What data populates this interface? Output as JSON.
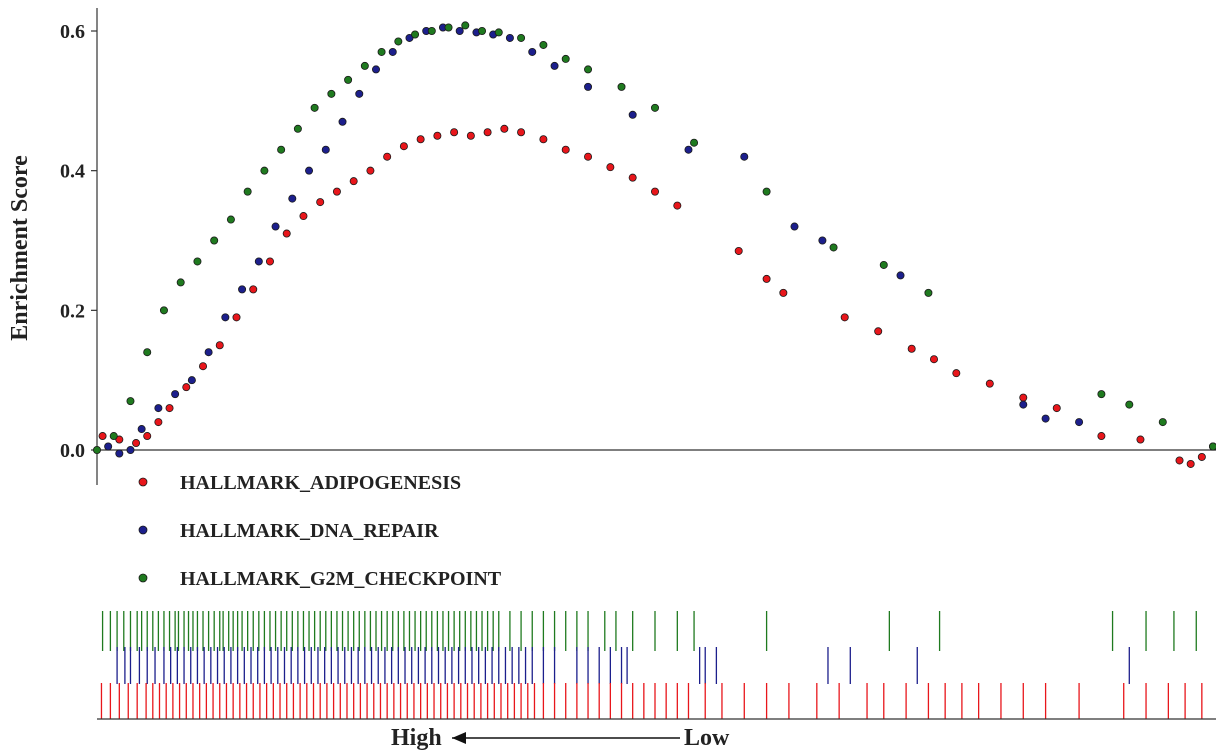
{
  "chart_data": {
    "type": "scatter",
    "title": "",
    "ylabel": "Enrichment Score",
    "xlabel_left": "High",
    "xlabel_right": "Low",
    "ylim": [
      -0.04,
      0.64
    ],
    "xlim": [
      0,
      1
    ],
    "yticks": [
      "0.0",
      "0.2",
      "0.4",
      "0.6"
    ],
    "ytick_values": [
      0,
      0.2,
      0.4,
      0.6
    ],
    "legend": {
      "placement": "below-plot"
    },
    "series": [
      {
        "name": "HALLMARK_ADIPOGENESIS",
        "color": "#e8161b",
        "points": [
          [
            0.005,
            0.02
          ],
          [
            0.02,
            0.015
          ],
          [
            0.035,
            0.01
          ],
          [
            0.045,
            0.02
          ],
          [
            0.055,
            0.04
          ],
          [
            0.065,
            0.06
          ],
          [
            0.08,
            0.09
          ],
          [
            0.095,
            0.12
          ],
          [
            0.11,
            0.15
          ],
          [
            0.125,
            0.19
          ],
          [
            0.14,
            0.23
          ],
          [
            0.155,
            0.27
          ],
          [
            0.17,
            0.31
          ],
          [
            0.185,
            0.335
          ],
          [
            0.2,
            0.355
          ],
          [
            0.215,
            0.37
          ],
          [
            0.23,
            0.385
          ],
          [
            0.245,
            0.4
          ],
          [
            0.26,
            0.42
          ],
          [
            0.275,
            0.435
          ],
          [
            0.29,
            0.445
          ],
          [
            0.305,
            0.45
          ],
          [
            0.32,
            0.455
          ],
          [
            0.335,
            0.45
          ],
          [
            0.35,
            0.455
          ],
          [
            0.365,
            0.46
          ],
          [
            0.38,
            0.455
          ],
          [
            0.4,
            0.445
          ],
          [
            0.42,
            0.43
          ],
          [
            0.44,
            0.42
          ],
          [
            0.46,
            0.405
          ],
          [
            0.48,
            0.39
          ],
          [
            0.5,
            0.37
          ],
          [
            0.52,
            0.35
          ],
          [
            0.575,
            0.285
          ],
          [
            0.6,
            0.245
          ],
          [
            0.615,
            0.225
          ],
          [
            0.67,
            0.19
          ],
          [
            0.7,
            0.17
          ],
          [
            0.73,
            0.145
          ],
          [
            0.75,
            0.13
          ],
          [
            0.77,
            0.11
          ],
          [
            0.8,
            0.095
          ],
          [
            0.83,
            0.075
          ],
          [
            0.86,
            0.06
          ],
          [
            0.9,
            0.02
          ],
          [
            0.935,
            0.015
          ],
          [
            0.97,
            -0.015
          ],
          [
            0.98,
            -0.02
          ],
          [
            0.99,
            -0.01
          ],
          [
            1.0,
            0.005
          ]
        ]
      },
      {
        "name": "HALLMARK_DNA_REPAIR",
        "color": "#1c1f8c",
        "points": [
          [
            0.01,
            0.005
          ],
          [
            0.02,
            -0.005
          ],
          [
            0.03,
            0.0
          ],
          [
            0.04,
            0.03
          ],
          [
            0.055,
            0.06
          ],
          [
            0.07,
            0.08
          ],
          [
            0.085,
            0.1
          ],
          [
            0.1,
            0.14
          ],
          [
            0.115,
            0.19
          ],
          [
            0.13,
            0.23
          ],
          [
            0.145,
            0.27
          ],
          [
            0.16,
            0.32
          ],
          [
            0.175,
            0.36
          ],
          [
            0.19,
            0.4
          ],
          [
            0.205,
            0.43
          ],
          [
            0.22,
            0.47
          ],
          [
            0.235,
            0.51
          ],
          [
            0.25,
            0.545
          ],
          [
            0.265,
            0.57
          ],
          [
            0.28,
            0.59
          ],
          [
            0.295,
            0.6
          ],
          [
            0.31,
            0.605
          ],
          [
            0.325,
            0.6
          ],
          [
            0.34,
            0.598
          ],
          [
            0.355,
            0.595
          ],
          [
            0.37,
            0.59
          ],
          [
            0.39,
            0.57
          ],
          [
            0.41,
            0.55
          ],
          [
            0.44,
            0.52
          ],
          [
            0.48,
            0.48
          ],
          [
            0.53,
            0.43
          ],
          [
            0.58,
            0.42
          ],
          [
            0.625,
            0.32
          ],
          [
            0.65,
            0.3
          ],
          [
            0.72,
            0.25
          ],
          [
            0.83,
            0.065
          ],
          [
            0.85,
            0.045
          ],
          [
            0.88,
            0.04
          ]
        ]
      },
      {
        "name": "HALLMARK_G2M_CHECKPOINT",
        "color": "#1f7a1f",
        "points": [
          [
            0.0,
            0.0
          ],
          [
            0.015,
            0.02
          ],
          [
            0.03,
            0.07
          ],
          [
            0.045,
            0.14
          ],
          [
            0.06,
            0.2
          ],
          [
            0.075,
            0.24
          ],
          [
            0.09,
            0.27
          ],
          [
            0.105,
            0.3
          ],
          [
            0.12,
            0.33
          ],
          [
            0.135,
            0.37
          ],
          [
            0.15,
            0.4
          ],
          [
            0.165,
            0.43
          ],
          [
            0.18,
            0.46
          ],
          [
            0.195,
            0.49
          ],
          [
            0.21,
            0.51
          ],
          [
            0.225,
            0.53
          ],
          [
            0.24,
            0.55
          ],
          [
            0.255,
            0.57
          ],
          [
            0.27,
            0.585
          ],
          [
            0.285,
            0.595
          ],
          [
            0.3,
            0.6
          ],
          [
            0.315,
            0.605
          ],
          [
            0.33,
            0.608
          ],
          [
            0.345,
            0.6
          ],
          [
            0.36,
            0.598
          ],
          [
            0.38,
            0.59
          ],
          [
            0.4,
            0.58
          ],
          [
            0.42,
            0.56
          ],
          [
            0.44,
            0.545
          ],
          [
            0.47,
            0.52
          ],
          [
            0.5,
            0.49
          ],
          [
            0.535,
            0.44
          ],
          [
            0.6,
            0.37
          ],
          [
            0.66,
            0.29
          ],
          [
            0.705,
            0.265
          ],
          [
            0.745,
            0.225
          ],
          [
            0.9,
            0.08
          ],
          [
            0.925,
            0.065
          ],
          [
            0.955,
            0.04
          ],
          [
            1.0,
            0.005
          ]
        ]
      }
    ],
    "rugs": [
      {
        "name": "HALLMARK_G2M_CHECKPOINT",
        "color": "#1f7a1f",
        "positions": [
          0.005,
          0.012,
          0.018,
          0.024,
          0.03,
          0.036,
          0.04,
          0.045,
          0.05,
          0.055,
          0.06,
          0.065,
          0.07,
          0.073,
          0.078,
          0.082,
          0.086,
          0.09,
          0.095,
          0.1,
          0.105,
          0.11,
          0.113,
          0.118,
          0.122,
          0.126,
          0.13,
          0.135,
          0.14,
          0.145,
          0.15,
          0.155,
          0.16,
          0.165,
          0.17,
          0.175,
          0.18,
          0.185,
          0.19,
          0.195,
          0.2,
          0.205,
          0.21,
          0.215,
          0.22,
          0.225,
          0.23,
          0.235,
          0.24,
          0.245,
          0.25,
          0.255,
          0.26,
          0.265,
          0.27,
          0.275,
          0.28,
          0.285,
          0.29,
          0.295,
          0.3,
          0.305,
          0.31,
          0.315,
          0.32,
          0.325,
          0.33,
          0.335,
          0.34,
          0.345,
          0.35,
          0.355,
          0.36,
          0.37,
          0.38,
          0.39,
          0.4,
          0.41,
          0.42,
          0.43,
          0.44,
          0.455,
          0.465,
          0.48,
          0.5,
          0.52,
          0.535,
          0.6,
          0.71,
          0.755,
          0.91,
          0.94,
          0.965,
          0.985
        ]
      },
      {
        "name": "HALLMARK_DNA_REPAIR",
        "color": "#1c1f8c",
        "positions": [
          0.018,
          0.025,
          0.03,
          0.038,
          0.045,
          0.052,
          0.06,
          0.066,
          0.072,
          0.078,
          0.084,
          0.09,
          0.096,
          0.102,
          0.108,
          0.114,
          0.12,
          0.126,
          0.132,
          0.138,
          0.144,
          0.15,
          0.156,
          0.162,
          0.168,
          0.174,
          0.18,
          0.186,
          0.192,
          0.198,
          0.204,
          0.21,
          0.216,
          0.222,
          0.228,
          0.234,
          0.24,
          0.246,
          0.252,
          0.258,
          0.264,
          0.27,
          0.276,
          0.282,
          0.288,
          0.294,
          0.3,
          0.306,
          0.312,
          0.318,
          0.324,
          0.33,
          0.336,
          0.342,
          0.348,
          0.354,
          0.36,
          0.366,
          0.372,
          0.378,
          0.384,
          0.39,
          0.4,
          0.41,
          0.43,
          0.44,
          0.45,
          0.46,
          0.47,
          0.475,
          0.54,
          0.545,
          0.555,
          0.655,
          0.675,
          0.735,
          0.925
        ]
      },
      {
        "name": "HALLMARK_ADIPOGENESIS",
        "color": "#e8161b",
        "positions": [
          0.004,
          0.012,
          0.02,
          0.028,
          0.036,
          0.044,
          0.05,
          0.056,
          0.062,
          0.068,
          0.074,
          0.08,
          0.086,
          0.092,
          0.098,
          0.104,
          0.11,
          0.116,
          0.122,
          0.128,
          0.134,
          0.14,
          0.146,
          0.152,
          0.158,
          0.164,
          0.17,
          0.176,
          0.182,
          0.188,
          0.194,
          0.2,
          0.206,
          0.212,
          0.218,
          0.224,
          0.23,
          0.236,
          0.242,
          0.248,
          0.254,
          0.26,
          0.266,
          0.272,
          0.278,
          0.284,
          0.29,
          0.296,
          0.302,
          0.308,
          0.314,
          0.32,
          0.326,
          0.332,
          0.338,
          0.344,
          0.35,
          0.356,
          0.362,
          0.368,
          0.374,
          0.38,
          0.386,
          0.392,
          0.4,
          0.41,
          0.42,
          0.43,
          0.44,
          0.45,
          0.46,
          0.47,
          0.48,
          0.49,
          0.5,
          0.51,
          0.52,
          0.53,
          0.545,
          0.56,
          0.58,
          0.6,
          0.62,
          0.645,
          0.665,
          0.69,
          0.705,
          0.725,
          0.745,
          0.76,
          0.775,
          0.79,
          0.81,
          0.83,
          0.85,
          0.88,
          0.92,
          0.94,
          0.96,
          0.975,
          0.99
        ]
      }
    ]
  }
}
